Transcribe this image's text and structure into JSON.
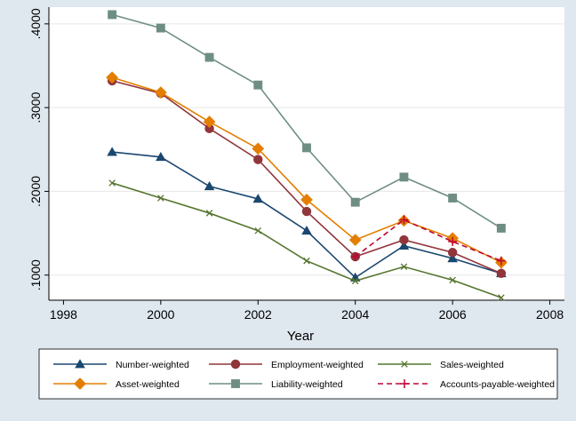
{
  "chart_data": {
    "type": "line",
    "xlabel": "Year",
    "ylabel": "",
    "x": [
      1999,
      2000,
      2001,
      2002,
      2003,
      2004,
      2005,
      2006,
      2007
    ],
    "xlim": [
      1997.7,
      2008.3
    ],
    "ylim": [
      0.07,
      0.42
    ],
    "x_ticks": [
      1998,
      2000,
      2002,
      2004,
      2006,
      2008
    ],
    "y_ticks": [
      0.1,
      0.2,
      0.3,
      0.4
    ],
    "x_tick_labels": [
      "1998",
      "2000",
      "2002",
      "2004",
      "2006",
      "2008"
    ],
    "y_tick_labels": [
      ".1000",
      ".2000",
      ".3000",
      ".4000"
    ],
    "grid": "horizontal",
    "legend_position": "bottom",
    "series": [
      {
        "name": "Number-weighted",
        "color": "#1a476f",
        "marker": "triangle",
        "dash": false,
        "values": [
          0.247,
          0.241,
          0.206,
          0.191,
          0.153,
          0.097,
          0.135,
          0.12,
          0.102
        ]
      },
      {
        "name": "Employment-weighted",
        "color": "#90353b",
        "marker": "circle",
        "dash": false,
        "values": [
          0.332,
          0.317,
          0.275,
          0.238,
          0.176,
          0.122,
          0.142,
          0.127,
          0.102
        ]
      },
      {
        "name": "Sales-weighted",
        "color": "#55752f",
        "marker": "x",
        "dash": false,
        "values": [
          0.21,
          0.192,
          0.174,
          0.153,
          0.117,
          0.093,
          0.11,
          0.094,
          0.073
        ]
      },
      {
        "name": "Asset-weighted",
        "color": "#e37e00",
        "marker": "diamond",
        "dash": false,
        "values": [
          0.336,
          0.318,
          0.283,
          0.251,
          0.19,
          0.142,
          0.165,
          0.144,
          0.115
        ]
      },
      {
        "name": "Liability-weighted",
        "color": "#6e8e84",
        "marker": "square",
        "dash": false,
        "values": [
          0.411,
          0.395,
          0.36,
          0.327,
          0.252,
          0.187,
          0.217,
          0.192,
          0.156
        ]
      },
      {
        "name": "Accounts-payable-weighted",
        "color": "#c10534",
        "marker": "plus",
        "dash": true,
        "values": [
          null,
          null,
          null,
          null,
          null,
          0.122,
          0.166,
          0.14,
          0.117
        ]
      }
    ]
  }
}
